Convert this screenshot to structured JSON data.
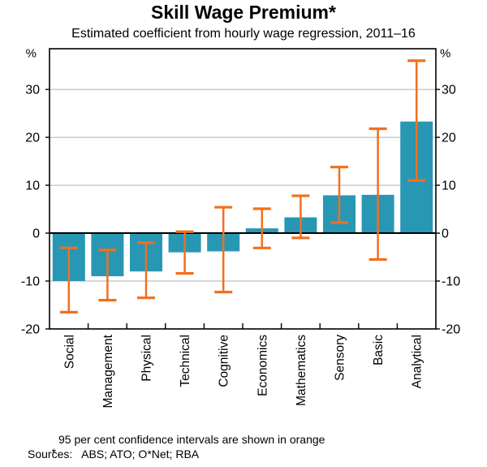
{
  "chart": {
    "title": "Skill Wage Premium*",
    "subtitle": "Estimated coefficient from hourly wage regression, 2011–16"
  },
  "chart_data": {
    "type": "bar",
    "title": "Skill Wage Premium*",
    "subtitle": "Estimated coefficient from hourly wage regression, 2011–16",
    "categories": [
      "Social",
      "Management",
      "Physical",
      "Technical",
      "Cognitive",
      "Economics",
      "Mathematics",
      "Sensory",
      "Basic",
      "Analytical"
    ],
    "values": [
      -10,
      -9,
      -8,
      -4,
      -3.8,
      1,
      3.3,
      7.9,
      8,
      23.3
    ],
    "ci_low": [
      -16.5,
      -14,
      -13.5,
      -8.4,
      -12.3,
      -3.1,
      -1.0,
      2.2,
      -5.5,
      11
    ],
    "ci_high": [
      -3.1,
      -3.5,
      -2,
      0.3,
      5.4,
      5.1,
      7.8,
      13.8,
      21.8,
      36
    ],
    "unit": "%",
    "ylabel_left": "%",
    "ylabel_right": "%",
    "xlabel": "",
    "ylim": [
      -20,
      38.5
    ],
    "yticks": [
      30,
      20,
      10,
      0,
      -10,
      -20
    ],
    "grid": true,
    "legend": false,
    "colors": {
      "bar": "#2897B4",
      "confidence_interval": "#F1701E",
      "gridline": "#B0B0B0",
      "zero_line": "#000000",
      "frame": "#000000"
    }
  },
  "footnotes": {
    "marker": "*",
    "note": "95 per cent confidence intervals are shown in orange",
    "sources": "Sources:   ABS; ATO; O*Net; RBA"
  }
}
